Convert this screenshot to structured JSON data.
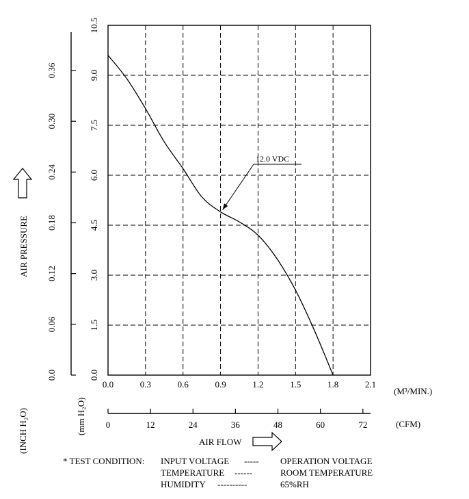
{
  "chart_data": {
    "type": "line",
    "title": "",
    "series": [
      {
        "name": "12.0 VDC",
        "x": [
          0.0,
          0.15,
          0.3,
          0.45,
          0.6,
          0.75,
          0.9,
          1.05,
          1.2,
          1.35,
          1.5,
          1.65,
          1.8
        ],
        "y": [
          9.6,
          8.9,
          8.0,
          7.0,
          6.2,
          5.35,
          4.9,
          4.6,
          4.2,
          3.5,
          2.55,
          1.35,
          0.0
        ]
      }
    ],
    "annotation": {
      "text": "12.0 VDC",
      "x": 0.9,
      "y": 4.9
    },
    "x_axis": {
      "label": "AIR FLOW",
      "unit": "(M³/MIN.)",
      "range": [
        0.0,
        2.1
      ],
      "ticks": [
        "0.0",
        "0.3",
        "0.6",
        "0.9",
        "1.2",
        "1.5",
        "1.8",
        "2.1"
      ]
    },
    "x_axis_secondary": {
      "unit": "(CFM)",
      "range": [
        0,
        74.16
      ],
      "ticks": [
        "0",
        "12",
        "24",
        "36",
        "48",
        "60",
        "72"
      ]
    },
    "y_axis": {
      "label": "AIR PRESSURE",
      "unit": "(mm H₂O)",
      "range": [
        0.0,
        10.5
      ],
      "ticks": [
        "0.0",
        "1.5",
        "3.0",
        "4.5",
        "6.0",
        "7.5",
        "9.0",
        "10.5"
      ]
    },
    "y_axis_secondary": {
      "unit": "(INCH H₂O)",
      "range": [
        0.0,
        0.4134
      ],
      "ticks": [
        "0.0",
        "0.06",
        "0.12",
        "0.18",
        "0.24",
        "0.30",
        "0.36"
      ]
    },
    "grid": true,
    "legend": "none"
  },
  "test_condition": {
    "prefix": "* TEST CONDITION:",
    "lines": [
      {
        "label": "INPUT VOLTAGE",
        "dashes": "-----",
        "value": "OPERATION VOLTAGE"
      },
      {
        "label": "TEMPERATURE",
        "dashes": "------",
        "value": "ROOM TEMPERATURE"
      },
      {
        "label": "HUMIDITY",
        "dashes": "----------",
        "value": "65%RH"
      }
    ]
  }
}
